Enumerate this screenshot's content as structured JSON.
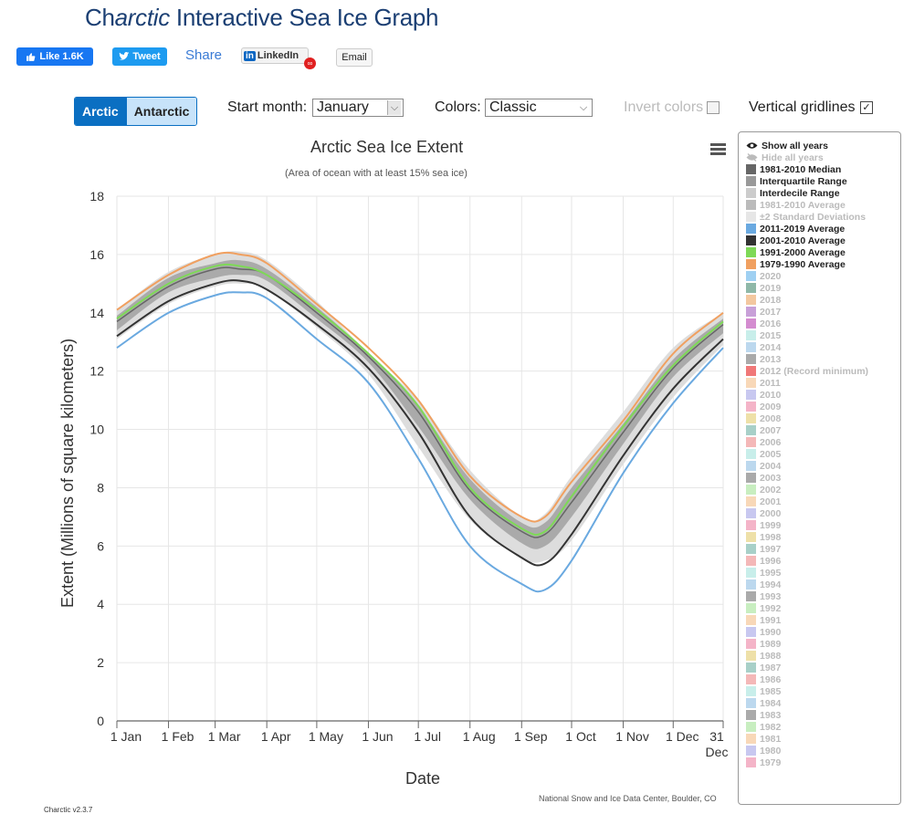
{
  "header": {
    "title_prefix": "Ch",
    "title_accent": "arctic",
    "title_rest": " Interactive Sea Ice Graph"
  },
  "social": {
    "like_label": "Like 1.6K",
    "tweet_label": "Tweet",
    "share_label": "Share",
    "linkedin_label": "LinkedIn",
    "linkedin_logo": "in",
    "email_label": "Email"
  },
  "controls": {
    "region_options": [
      "Arctic",
      "Antarctic"
    ],
    "selected_region": "Arctic",
    "start_month_label": "Start month:",
    "start_month_value": "January",
    "colors_label": "Colors:",
    "colors_value": "Classic",
    "invert_label": "Invert colors",
    "invert_checked": false,
    "gridlines_label": "Vertical gridlines",
    "gridlines_checked": true
  },
  "legend": {
    "show_all": "Show all years",
    "hide_all": "Hide all years",
    "items": [
      {
        "label": "1981-2010 Median",
        "color": "#666666",
        "active": true
      },
      {
        "label": "Interquartile Range",
        "color": "#999999",
        "active": true
      },
      {
        "label": "Interdecile Range",
        "color": "#cccccc",
        "active": true
      },
      {
        "label": "1981-2010 Average",
        "color": "#bbbbbb",
        "active": false
      },
      {
        "label": "±2 Standard Deviations",
        "color": "#e6e6e6",
        "active": false
      },
      {
        "label": "2011-2019 Average",
        "color": "#6aa9e0",
        "active": true
      },
      {
        "label": "2001-2010 Average",
        "color": "#333333",
        "active": true
      },
      {
        "label": "1991-2000 Average",
        "color": "#7ed957",
        "active": true
      },
      {
        "label": "1979-1990 Average",
        "color": "#f0a060",
        "active": true
      },
      {
        "label": "2020",
        "color": "#9fd0f2",
        "active": false
      },
      {
        "label": "2019",
        "color": "#8fb8a8",
        "active": false
      },
      {
        "label": "2018",
        "color": "#f3c8a0",
        "active": false
      },
      {
        "label": "2017",
        "color": "#c8a0d8",
        "active": false
      },
      {
        "label": "2016",
        "color": "#d48cd0",
        "active": false
      },
      {
        "label": "2015",
        "color": "#c8eeea",
        "active": false
      },
      {
        "label": "2014",
        "color": "#bcd8ee",
        "active": false
      },
      {
        "label": "2013",
        "color": "#aaaaaa",
        "active": false
      },
      {
        "label": "2012 (Record minimum)",
        "color": "#f07878",
        "active": false
      },
      {
        "label": "2011",
        "color": "#f8d8b8",
        "active": false
      },
      {
        "label": "2010",
        "color": "#c8c8f0",
        "active": false
      },
      {
        "label": "2009",
        "color": "#f4b4c8",
        "active": false
      },
      {
        "label": "2008",
        "color": "#eee0a8",
        "active": false
      },
      {
        "label": "2007",
        "color": "#a8d0c8",
        "active": false
      },
      {
        "label": "2006",
        "color": "#f4b8b8",
        "active": false
      },
      {
        "label": "2005",
        "color": "#c8eeea",
        "active": false
      },
      {
        "label": "2004",
        "color": "#bcd8ee",
        "active": false
      },
      {
        "label": "2003",
        "color": "#aaaaaa",
        "active": false
      },
      {
        "label": "2002",
        "color": "#c8eec0",
        "active": false
      },
      {
        "label": "2001",
        "color": "#f8d8b8",
        "active": false
      },
      {
        "label": "2000",
        "color": "#c8c8f0",
        "active": false
      },
      {
        "label": "1999",
        "color": "#f4b4c8",
        "active": false
      },
      {
        "label": "1998",
        "color": "#eee0a8",
        "active": false
      },
      {
        "label": "1997",
        "color": "#a8d0c8",
        "active": false
      },
      {
        "label": "1996",
        "color": "#f4b8b8",
        "active": false
      },
      {
        "label": "1995",
        "color": "#c8eeea",
        "active": false
      },
      {
        "label": "1994",
        "color": "#bcd8ee",
        "active": false
      },
      {
        "label": "1993",
        "color": "#aaaaaa",
        "active": false
      },
      {
        "label": "1992",
        "color": "#c8eec0",
        "active": false
      },
      {
        "label": "1991",
        "color": "#f8d8b8",
        "active": false
      },
      {
        "label": "1990",
        "color": "#c8c8f0",
        "active": false
      },
      {
        "label": "1989",
        "color": "#f4b4c8",
        "active": false
      },
      {
        "label": "1988",
        "color": "#eee0a8",
        "active": false
      },
      {
        "label": "1987",
        "color": "#a8d0c8",
        "active": false
      },
      {
        "label": "1986",
        "color": "#f4b8b8",
        "active": false
      },
      {
        "label": "1985",
        "color": "#c8eeea",
        "active": false
      },
      {
        "label": "1984",
        "color": "#bcd8ee",
        "active": false
      },
      {
        "label": "1983",
        "color": "#aaaaaa",
        "active": false
      },
      {
        "label": "1982",
        "color": "#c8eec0",
        "active": false
      },
      {
        "label": "1981",
        "color": "#f8d8b8",
        "active": false
      },
      {
        "label": "1980",
        "color": "#c8c8f0",
        "active": false
      },
      {
        "label": "1979",
        "color": "#f4b4c8",
        "active": false
      }
    ]
  },
  "footer": {
    "credit": "National Snow and Ice Data Center, Boulder, CO",
    "version": "Charctic v2.3.7"
  },
  "chart_data": {
    "type": "line",
    "title": "Arctic Sea Ice Extent",
    "subtitle": "(Area of ocean with at least 15% sea ice)",
    "xlabel": "Date",
    "ylabel": "Extent (Millions of square kilometers)",
    "ylim": [
      0,
      18
    ],
    "yticks": [
      0,
      2,
      4,
      6,
      8,
      10,
      12,
      14,
      16,
      18
    ],
    "xlim": [
      1,
      365
    ],
    "xticks": [
      {
        "day": 1,
        "label": "1 Jan"
      },
      {
        "day": 32,
        "label": "1 Feb"
      },
      {
        "day": 60,
        "label": "1 Mar"
      },
      {
        "day": 91,
        "label": "1 Apr"
      },
      {
        "day": 121,
        "label": "1 May"
      },
      {
        "day": 152,
        "label": "1 Jun"
      },
      {
        "day": 182,
        "label": "1 Jul"
      },
      {
        "day": 213,
        "label": "1 Aug"
      },
      {
        "day": 244,
        "label": "1 Sep"
      },
      {
        "day": 274,
        "label": "1 Oct"
      },
      {
        "day": 305,
        "label": "1 Nov"
      },
      {
        "day": 335,
        "label": "1 Dec"
      },
      {
        "day": 365,
        "label": "31"
      }
    ],
    "xtick_sublabel": "Dec",
    "vertical_gridlines": true,
    "x": [
      1,
      32,
      60,
      75,
      91,
      121,
      152,
      182,
      213,
      244,
      258,
      274,
      305,
      335,
      365
    ],
    "bands": [
      {
        "name": "Interdecile Range",
        "color": "#dddddd",
        "low": [
          13.1,
          14.3,
          14.9,
          15.0,
          14.8,
          13.5,
          11.9,
          9.4,
          6.9,
          5.6,
          5.5,
          6.2,
          8.8,
          11.1,
          12.9
        ],
        "high": [
          14.1,
          15.4,
          16.0,
          16.1,
          15.8,
          14.4,
          12.6,
          11.0,
          8.6,
          7.0,
          7.1,
          8.4,
          10.6,
          12.8,
          14.0
        ]
      },
      {
        "name": "Interquartile Range",
        "color": "#aaaaaa",
        "low": [
          13.4,
          14.7,
          15.2,
          15.3,
          15.1,
          13.8,
          12.3,
          10.1,
          7.6,
          6.1,
          6.0,
          7.0,
          9.5,
          11.8,
          13.3
        ],
        "high": [
          13.9,
          15.2,
          15.7,
          15.8,
          15.5,
          14.2,
          12.6,
          10.8,
          8.3,
          6.8,
          6.8,
          8.0,
          10.2,
          12.4,
          13.8
        ]
      }
    ],
    "series": [
      {
        "name": "1981-2010 Median",
        "color": "#666666",
        "width": 1.5,
        "values": [
          13.7,
          14.9,
          15.5,
          15.5,
          15.3,
          14.0,
          12.5,
          10.6,
          7.9,
          6.5,
          6.4,
          7.5,
          9.9,
          12.1,
          13.6
        ]
      },
      {
        "name": "1979-1990 Average",
        "color": "#f0a060",
        "width": 2,
        "values": [
          14.1,
          15.3,
          16.0,
          16.0,
          15.7,
          14.3,
          12.8,
          11.0,
          8.4,
          7.0,
          7.0,
          8.2,
          10.3,
          12.6,
          14.0
        ]
      },
      {
        "name": "1991-2000 Average",
        "color": "#7ed957",
        "width": 2,
        "values": [
          13.8,
          15.0,
          15.6,
          15.6,
          15.3,
          14.1,
          12.6,
          10.8,
          8.0,
          6.6,
          6.5,
          7.7,
          10.1,
          12.2,
          13.7
        ]
      },
      {
        "name": "2001-2010 Average",
        "color": "#333333",
        "width": 2,
        "values": [
          13.2,
          14.4,
          15.0,
          15.1,
          14.8,
          13.6,
          12.1,
          9.9,
          7.0,
          5.6,
          5.4,
          6.4,
          9.1,
          11.4,
          13.1
        ]
      },
      {
        "name": "2011-2019 Average",
        "color": "#6aa9e0",
        "width": 2,
        "values": [
          12.8,
          14.0,
          14.6,
          14.7,
          14.5,
          13.1,
          11.6,
          9.0,
          6.0,
          4.7,
          4.5,
          5.5,
          8.5,
          10.9,
          12.8
        ]
      }
    ]
  }
}
